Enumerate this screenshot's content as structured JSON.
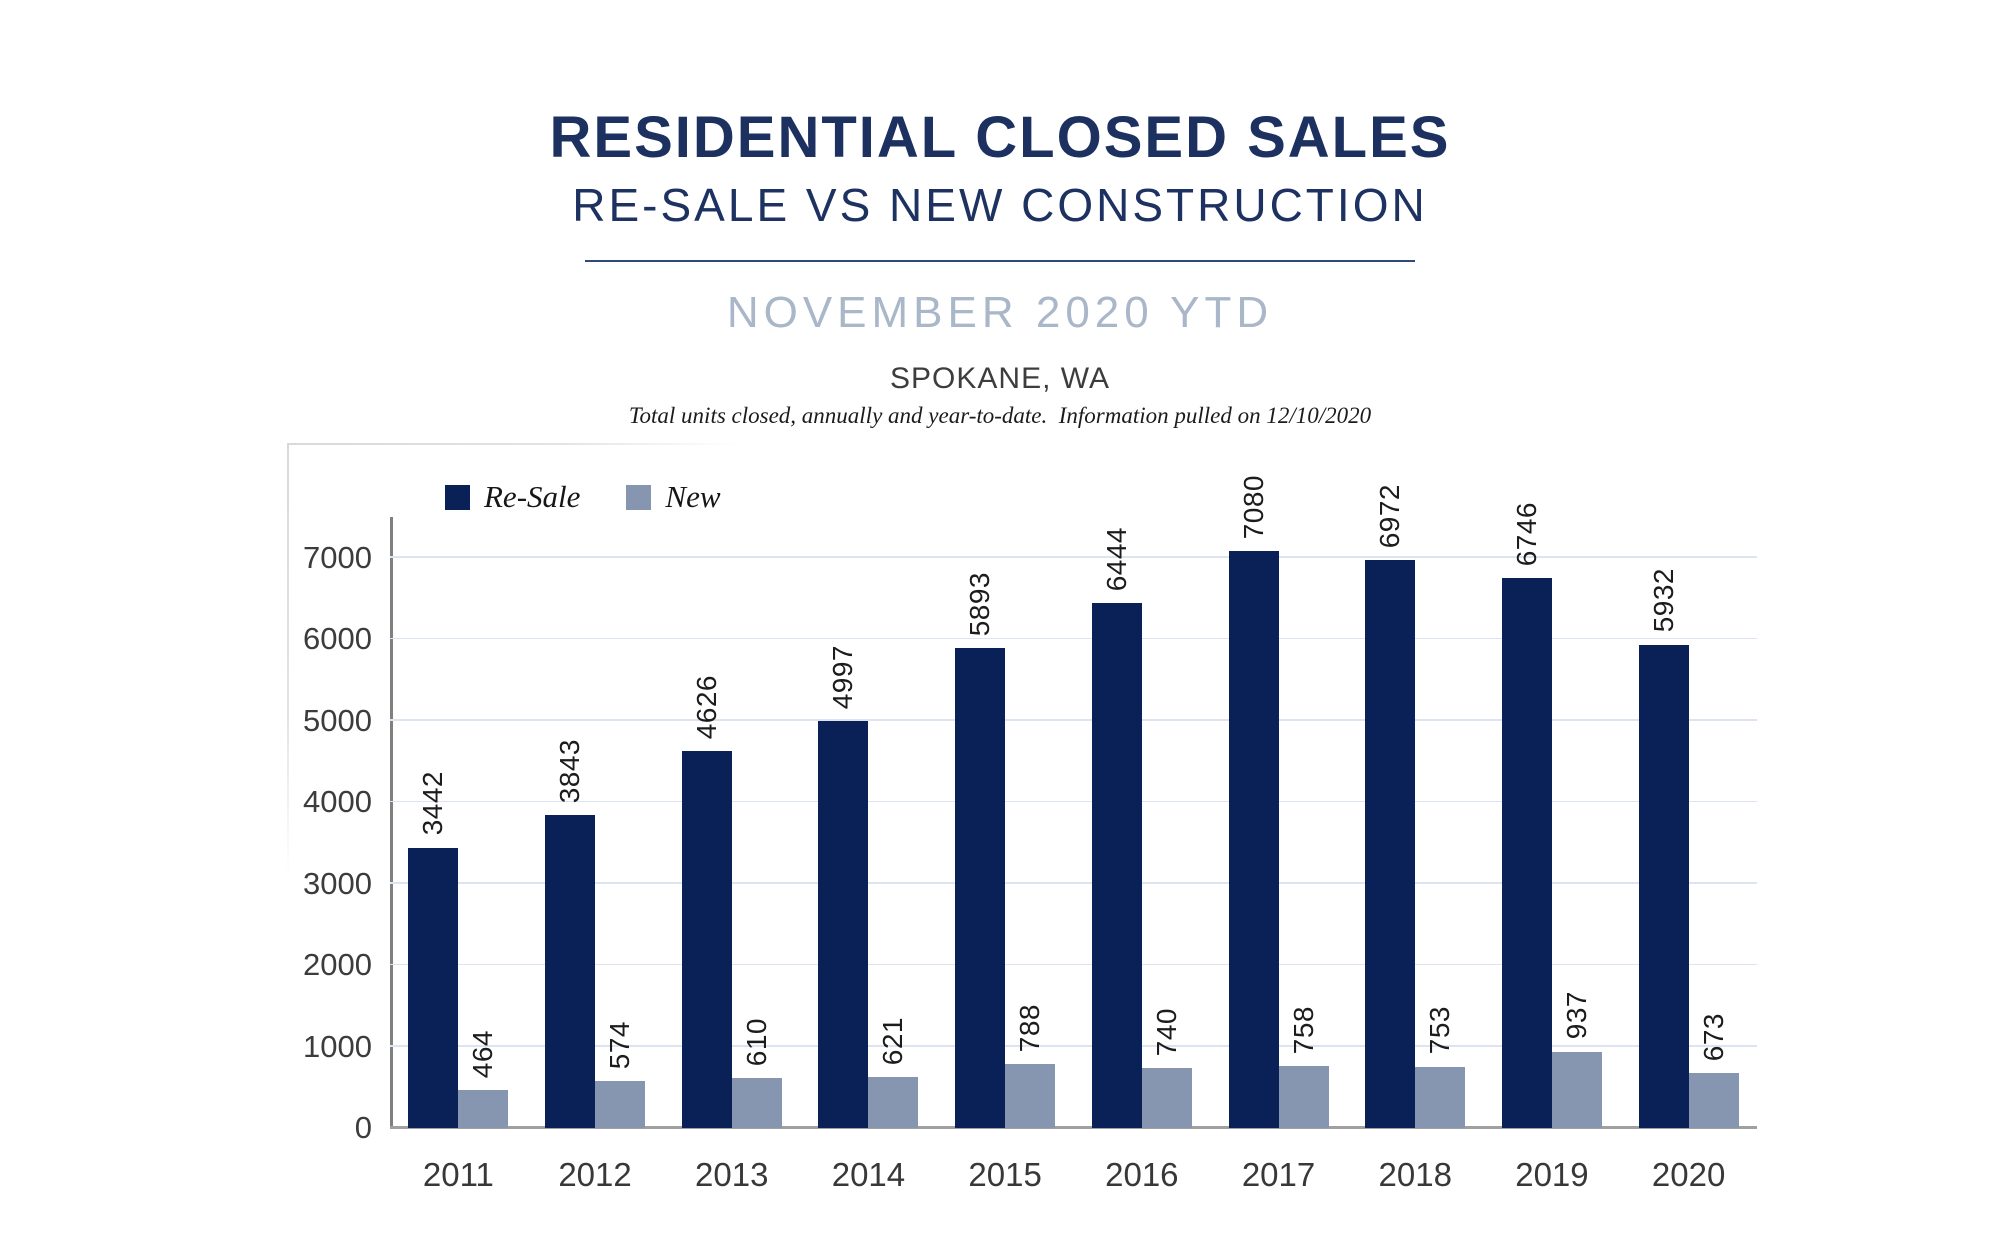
{
  "header": {
    "title": "RESIDENTIAL CLOSED SALES",
    "subtitle": "RE-SALE VS NEW CONSTRUCTION",
    "period": "NOVEMBER 2020 YTD",
    "location": "SPOKANE, WA",
    "note": "Total units closed, annually and year-to-date.  Information pulled on 12/10/2020"
  },
  "chart_data": {
    "type": "bar",
    "title": "RESIDENTIAL CLOSED SALES — RE-SALE VS NEW CONSTRUCTION, NOVEMBER 2020 YTD, SPOKANE, WA",
    "categories": [
      "2011",
      "2012",
      "2013",
      "2014",
      "2015",
      "2016",
      "2017",
      "2018",
      "2019",
      "2020"
    ],
    "series": [
      {
        "name": "Re-Sale",
        "color": "#0a2158",
        "values": [
          3442,
          3843,
          4626,
          4997,
          5893,
          6444,
          7080,
          6972,
          6746,
          5932
        ]
      },
      {
        "name": "New",
        "color": "#8696b0",
        "values": [
          464,
          574,
          610,
          621,
          788,
          740,
          758,
          753,
          937,
          673
        ]
      }
    ],
    "xlabel": "",
    "ylabel": "",
    "ylim": [
      0,
      7500
    ],
    "yticks": [
      0,
      1000,
      2000,
      3000,
      4000,
      5000,
      6000,
      7000
    ],
    "grid": true,
    "legend_position": "top-left",
    "value_labels": "rotated 90 degrees above each bar"
  },
  "style": {
    "title_color": "#1d3160",
    "period_color": "#a9b7c9",
    "divider_color": "#2f4a7d",
    "gridline_color": "#dde4f1",
    "axis_line_color": "#7f7f7f",
    "baseline_color": "#a0a0a0",
    "tick_label_color": "#3c3c3c",
    "value_label_color": "#1c1c1c"
  }
}
